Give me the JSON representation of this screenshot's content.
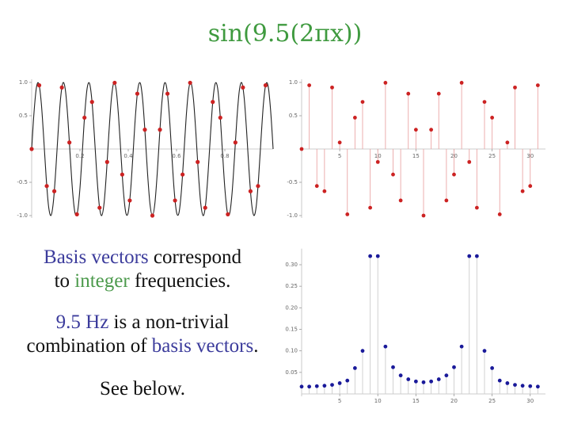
{
  "title": "sin(9.5(2πx))",
  "title_color": "#3f9a3f",
  "text_blocks": [
    [
      [
        {
          "text": "Basis vectors",
          "color": "#3c3c9c"
        },
        {
          "text": " correspond",
          "color": "#111111"
        }
      ],
      [
        {
          "text": "to ",
          "color": "#111111"
        },
        {
          "text": "integer",
          "color": "#4c9a4c"
        },
        {
          "text": " frequencies.",
          "color": "#111111"
        }
      ]
    ],
    [
      [
        {
          "text": "9.5 Hz",
          "color": "#3c3c9c"
        },
        {
          "text": " is a non-trivial",
          "color": "#111111"
        }
      ],
      [
        {
          "text": "combination of ",
          "color": "#111111"
        },
        {
          "text": "basis vectors",
          "color": "#3c3c9c"
        },
        {
          "text": ".",
          "color": "#111111"
        }
      ]
    ],
    [
      [
        {
          "text": "See below.",
          "color": "#111111"
        }
      ]
    ]
  ],
  "chart_data": [
    {
      "type": "line",
      "color": "#222222",
      "x": [
        0,
        0.01,
        0.02,
        0.03,
        0.04,
        0.05,
        0.06,
        0.07,
        0.08,
        0.09,
        0.1,
        0.11,
        0.12,
        0.13,
        0.14,
        0.15,
        0.16,
        0.17,
        0.18,
        0.19,
        0.2,
        0.21,
        0.22,
        0.23,
        0.24,
        0.25,
        0.26,
        0.27,
        0.28,
        0.29,
        0.3,
        0.31,
        0.32,
        0.33,
        0.34,
        0.35,
        0.36,
        0.37,
        0.38,
        0.39,
        0.4,
        0.41,
        0.42,
        0.43,
        0.44,
        0.45,
        0.46,
        0.47,
        0.48,
        0.49,
        0.5,
        0.51,
        0.52,
        0.53,
        0.54,
        0.55,
        0.56,
        0.57,
        0.58,
        0.59,
        0.6,
        0.61,
        0.62,
        0.63,
        0.64,
        0.65,
        0.66,
        0.67,
        0.68,
        0.69,
        0.7,
        0.71,
        0.72,
        0.73,
        0.74,
        0.75,
        0.76,
        0.77,
        0.78,
        0.79,
        0.8,
        0.81,
        0.82,
        0.83,
        0.84,
        0.85,
        0.86,
        0.87,
        0.88,
        0.89,
        0.9,
        0.91,
        0.92,
        0.93,
        0.94,
        0.95,
        0.96,
        0.97,
        0.98,
        0.99,
        1
      ],
      "values": [
        0,
        0.562,
        0.93,
        0.976,
        0.685,
        0.156,
        -0.426,
        -0.861,
        -0.998,
        -0.79,
        -0.309,
        0.279,
        0.771,
        0.996,
        0.876,
        0.454,
        -0.125,
        -0.661,
        -0.969,
        -0.941,
        -0.588,
        -0.031,
        0.536,
        0.918,
        0.982,
        0.707,
        0.187,
        -0.397,
        -0.844,
        -1,
        -0.809,
        -0.339,
        0.249,
        0.75,
        0.992,
        0.891,
        0.482,
        -0.094,
        -0.637,
        -0.96,
        -0.951,
        -0.613,
        -0.063,
        0.509,
        0.905,
        0.988,
        0.729,
        0.218,
        -0.368,
        -0.827,
        -1,
        -0.827,
        -0.368,
        0.218,
        0.729,
        0.988,
        0.905,
        0.509,
        -0.063,
        -0.613,
        -0.951,
        -0.96,
        -0.637,
        -0.094,
        0.482,
        0.891,
        0.992,
        0.75,
        0.249,
        -0.339,
        -0.809,
        -1,
        -0.844,
        -0.397,
        0.187,
        0.707,
        0.982,
        0.918,
        0.536,
        -0.031,
        -0.588,
        -0.941,
        -0.969,
        -0.661,
        -0.125,
        0.454,
        0.876,
        0.996,
        0.771,
        0.279,
        -0.309,
        -0.79,
        -0.998,
        -0.861,
        -0.426,
        0.156,
        0.685,
        0.976,
        0.93,
        0.562,
        0
      ],
      "samples": {
        "color": "#cc2222",
        "x": [
          0,
          0.03125,
          0.0625,
          0.09375,
          0.125,
          0.15625,
          0.1875,
          0.21875,
          0.25,
          0.28125,
          0.3125,
          0.34375,
          0.375,
          0.40625,
          0.4375,
          0.46875,
          0.5,
          0.53125,
          0.5625,
          0.59375,
          0.625,
          0.65625,
          0.6875,
          0.71875,
          0.75,
          0.78125,
          0.8125,
          0.84375,
          0.875,
          0.90625,
          0.9375,
          0.96875
        ],
        "values": [
          0,
          0.957,
          -0.556,
          -0.634,
          0.924,
          0.098,
          -0.981,
          0.471,
          0.707,
          -0.882,
          -0.195,
          0.995,
          -0.383,
          -0.773,
          0.831,
          0.29,
          -1,
          0.29,
          0.831,
          -0.773,
          -0.383,
          0.995,
          -0.195,
          -0.882,
          0.707,
          0.471,
          -0.981,
          0.098,
          0.924,
          -0.634,
          -0.556,
          0.957
        ]
      },
      "xlim": [
        0,
        1
      ],
      "ylim": [
        -1,
        1
      ],
      "xticks": [
        0.2,
        0.4,
        0.6,
        0.8
      ],
      "yticks": [
        {
          "value": 1,
          "label": "1.0"
        },
        0.5,
        -0.5,
        {
          "value": -1,
          "label": "-1.0"
        }
      ]
    },
    {
      "type": "stem",
      "color": "#cc2222",
      "stem_color": "#eaa6a6",
      "x": [
        0,
        1,
        2,
        3,
        4,
        5,
        6,
        7,
        8,
        9,
        10,
        11,
        12,
        13,
        14,
        15,
        16,
        17,
        18,
        19,
        20,
        21,
        22,
        23,
        24,
        25,
        26,
        27,
        28,
        29,
        30,
        31
      ],
      "values": [
        0,
        0.957,
        -0.556,
        -0.634,
        0.924,
        0.098,
        -0.981,
        0.471,
        0.707,
        -0.882,
        -0.195,
        0.995,
        -0.383,
        -0.773,
        0.831,
        0.29,
        -1,
        0.29,
        0.831,
        -0.773,
        -0.383,
        0.995,
        -0.195,
        -0.882,
        0.707,
        0.471,
        -0.981,
        0.098,
        0.924,
        -0.634,
        -0.556,
        0.957
      ],
      "xlim": [
        0,
        32
      ],
      "ylim": [
        -1,
        1
      ],
      "xticks": [
        5,
        10,
        15,
        20,
        25,
        30
      ],
      "yticks": [
        {
          "value": 1,
          "label": "1.0"
        },
        0.5,
        -0.5,
        {
          "value": -1,
          "label": "-1.0"
        }
      ]
    },
    {
      "type": "stem",
      "color": "#1a1a9a",
      "stem_color": "#cccccc",
      "x": [
        0,
        1,
        2,
        3,
        4,
        5,
        6,
        7,
        8,
        9,
        10,
        11,
        12,
        13,
        14,
        15,
        16,
        17,
        18,
        19,
        20,
        21,
        22,
        23,
        24,
        25,
        26,
        27,
        28,
        29,
        30,
        31
      ],
      "values": [
        0.017,
        0.017,
        0.018,
        0.019,
        0.021,
        0.025,
        0.031,
        0.06,
        0.1,
        0.32,
        0.32,
        0.11,
        0.062,
        0.043,
        0.034,
        0.029,
        0.027,
        0.029,
        0.034,
        0.043,
        0.062,
        0.11,
        0.32,
        0.32,
        0.1,
        0.06,
        0.031,
        0.025,
        0.021,
        0.019,
        0.018,
        0.017
      ],
      "xlim": [
        0,
        32
      ],
      "ylim": [
        0,
        0.33
      ],
      "xticks": [
        5,
        10,
        15,
        20,
        25,
        30
      ],
      "yticks": [
        0.05,
        {
          "value": 0.1,
          "label": "0.10"
        },
        0.15,
        {
          "value": 0.2,
          "label": "0.20"
        },
        0.25,
        {
          "value": 0.3,
          "label": "0.30"
        }
      ]
    }
  ]
}
